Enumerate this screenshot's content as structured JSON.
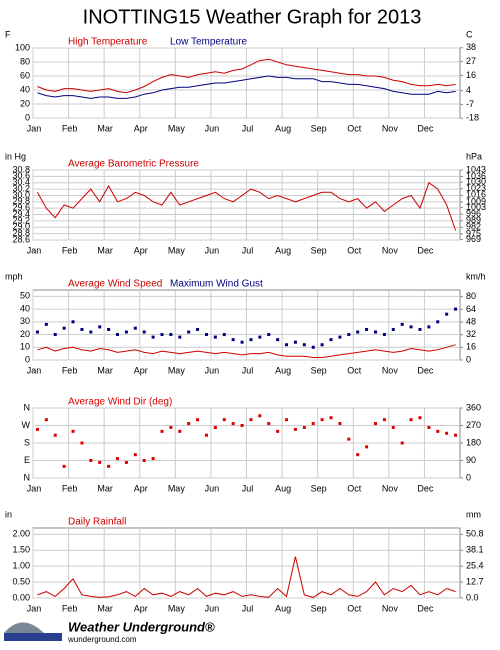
{
  "title": "INOTTING15 Weather Graph for 2013",
  "footer": {
    "brand": "Weather Underground®",
    "url": "wunderground.com"
  },
  "chart_data": [
    {
      "type": "line",
      "y_unit": "F",
      "y2_unit": "C",
      "categories": [
        "Jan",
        null,
        null,
        null,
        "Feb",
        null,
        null,
        null,
        "Mar",
        null,
        null,
        null,
        "Apr",
        null,
        null,
        null,
        "May",
        null,
        null,
        null,
        "Jun",
        null,
        null,
        null,
        "Jul",
        null,
        null,
        null,
        "Aug",
        null,
        null,
        null,
        "Sep",
        null,
        null,
        null,
        "Oct",
        null,
        null,
        null,
        "Nov",
        null,
        null,
        null,
        "Dec",
        null,
        null,
        null
      ],
      "ylim": [
        0,
        100
      ],
      "yticks": [
        0,
        20,
        40,
        60,
        80,
        100
      ],
      "y2lim": [
        -17.8,
        37.8
      ],
      "y2ticks": [
        -18,
        -7,
        4,
        16,
        27,
        38
      ],
      "series": [
        {
          "name": "High Temperature",
          "color": "#cc0000",
          "mark": "line",
          "values": [
            45,
            40,
            38,
            42,
            42,
            40,
            38,
            40,
            42,
            38,
            36,
            40,
            45,
            52,
            58,
            62,
            60,
            58,
            62,
            64,
            66,
            64,
            68,
            70,
            76,
            82,
            84,
            80,
            76,
            74,
            72,
            70,
            68,
            66,
            64,
            62,
            62,
            60,
            60,
            58,
            54,
            52,
            48,
            46,
            46,
            48,
            46,
            48
          ]
        },
        {
          "name": "Low Temperature",
          "color": "#000080",
          "mark": "line",
          "values": [
            36,
            32,
            30,
            32,
            32,
            30,
            28,
            30,
            30,
            28,
            28,
            30,
            34,
            36,
            40,
            42,
            44,
            44,
            46,
            48,
            50,
            50,
            52,
            54,
            56,
            58,
            60,
            58,
            58,
            56,
            56,
            56,
            52,
            52,
            50,
            48,
            48,
            46,
            44,
            42,
            38,
            36,
            34,
            34,
            34,
            38,
            36,
            38
          ]
        }
      ]
    },
    {
      "type": "line",
      "y_unit": "in Hg",
      "y2_unit": "hPa",
      "categories": [
        "Jan",
        null,
        null,
        null,
        "Feb",
        null,
        null,
        null,
        "Mar",
        null,
        null,
        null,
        "Apr",
        null,
        null,
        null,
        "May",
        null,
        null,
        null,
        "Jun",
        null,
        null,
        null,
        "Jul",
        null,
        null,
        null,
        "Aug",
        null,
        null,
        null,
        "Sep",
        null,
        null,
        null,
        "Oct",
        null,
        null,
        null,
        "Nov",
        null,
        null,
        null,
        "Dec",
        null,
        null,
        null
      ],
      "ylim": [
        28.6,
        30.8
      ],
      "yticks": [
        28.6,
        28.8,
        {
          "value": 29,
          "label": "29.0"
        },
        29.2,
        29.4,
        29.6,
        29.8,
        {
          "value": 30,
          "label": "30.0"
        },
        30.2,
        30.4,
        30.6,
        30.8
      ],
      "y2lim": [
        968.5,
        1043
      ],
      "y2ticks": [
        969,
        975,
        982,
        989,
        996,
        1003,
        1009,
        1016,
        1023,
        1030,
        1036,
        1043
      ],
      "series": [
        {
          "name": "Average Barometric Pressure",
          "color": "#cc0000",
          "mark": "line",
          "values": [
            30.1,
            29.6,
            29.3,
            29.7,
            29.6,
            29.9,
            30.2,
            29.8,
            30.3,
            29.8,
            29.9,
            30.1,
            30.0,
            29.8,
            29.7,
            30.1,
            29.7,
            29.8,
            29.9,
            30.0,
            30.1,
            29.9,
            29.8,
            30.0,
            30.2,
            30.1,
            29.9,
            30.0,
            29.9,
            29.8,
            29.9,
            30.0,
            30.1,
            30.1,
            29.9,
            29.8,
            29.9,
            29.6,
            29.8,
            29.5,
            29.7,
            29.9,
            30.0,
            29.6,
            30.4,
            30.2,
            29.7,
            28.9
          ]
        }
      ]
    },
    {
      "type": "line",
      "y_unit": "mph",
      "y2_unit": "km/h",
      "categories": [
        "Jan",
        null,
        null,
        null,
        "Feb",
        null,
        null,
        null,
        "Mar",
        null,
        null,
        null,
        "Apr",
        null,
        null,
        null,
        "May",
        null,
        null,
        null,
        "Jun",
        null,
        null,
        null,
        "Jul",
        null,
        null,
        null,
        "Aug",
        null,
        null,
        null,
        "Sep",
        null,
        null,
        null,
        "Oct",
        null,
        null,
        null,
        "Nov",
        null,
        null,
        null,
        "Dec",
        null,
        null,
        null
      ],
      "ylim": [
        0,
        55
      ],
      "yticks": [
        0,
        10,
        20,
        30,
        40,
        50
      ],
      "y2lim": [
        0,
        88.5
      ],
      "y2ticks": [
        0,
        16,
        32,
        48,
        64,
        80
      ],
      "series": [
        {
          "name": "Average Wind Speed",
          "color": "#cc0000",
          "mark": "line",
          "values": [
            8,
            10,
            7,
            9,
            10,
            8,
            7,
            9,
            8,
            6,
            7,
            8,
            6,
            5,
            7,
            6,
            5,
            6,
            7,
            6,
            5,
            6,
            5,
            4,
            5,
            5,
            6,
            4,
            3,
            3,
            3,
            2,
            2,
            3,
            4,
            5,
            6,
            7,
            8,
            7,
            6,
            7,
            9,
            8,
            7,
            8,
            10,
            12
          ]
        },
        {
          "name": "Maximum Wind Gust",
          "color": "#000080",
          "mark": "dot",
          "values": [
            22,
            28,
            20,
            25,
            30,
            24,
            22,
            26,
            24,
            20,
            22,
            25,
            22,
            18,
            20,
            20,
            18,
            22,
            24,
            20,
            18,
            20,
            16,
            14,
            16,
            18,
            20,
            16,
            12,
            14,
            12,
            10,
            12,
            16,
            18,
            20,
            22,
            24,
            22,
            20,
            24,
            28,
            26,
            24,
            26,
            30,
            36,
            40
          ]
        }
      ]
    },
    {
      "type": "scatter",
      "y_unit": "",
      "y2_unit": "",
      "categories": [
        "Jan",
        null,
        null,
        null,
        "Feb",
        null,
        null,
        null,
        "Mar",
        null,
        null,
        null,
        "Apr",
        null,
        null,
        null,
        "May",
        null,
        null,
        null,
        "Jun",
        null,
        null,
        null,
        "Jul",
        null,
        null,
        null,
        "Aug",
        null,
        null,
        null,
        "Sep",
        null,
        null,
        null,
        "Oct",
        null,
        null,
        null,
        "Nov",
        null,
        null,
        null,
        "Dec",
        null,
        null,
        null
      ],
      "ylim": [
        0,
        360
      ],
      "yticks": [
        {
          "value": 0,
          "label": "N"
        },
        {
          "value": 90,
          "label": "E"
        },
        {
          "value": 180,
          "label": "S"
        },
        {
          "value": 270,
          "label": "W"
        },
        {
          "value": 360,
          "label": "N"
        }
      ],
      "y2lim": [
        0,
        360
      ],
      "y2ticks": [
        0,
        90,
        180,
        270,
        360
      ],
      "series": [
        {
          "name": "Average Wind Dir (deg)",
          "color": "#dd0000",
          "mark": "dot",
          "values": [
            250,
            300,
            220,
            60,
            240,
            180,
            90,
            80,
            60,
            100,
            80,
            120,
            90,
            100,
            240,
            260,
            240,
            280,
            300,
            220,
            260,
            300,
            280,
            270,
            300,
            320,
            280,
            240,
            300,
            250,
            260,
            280,
            300,
            310,
            280,
            200,
            120,
            160,
            280,
            300,
            260,
            180,
            300,
            310,
            260,
            240,
            230,
            220
          ]
        }
      ]
    },
    {
      "type": "line",
      "y_unit": "in",
      "y2_unit": "mm",
      "categories": [
        "Jan",
        null,
        null,
        null,
        "Feb",
        null,
        null,
        null,
        "Mar",
        null,
        null,
        null,
        "Apr",
        null,
        null,
        null,
        "May",
        null,
        null,
        null,
        "Jun",
        null,
        null,
        null,
        "Jul",
        null,
        null,
        null,
        "Aug",
        null,
        null,
        null,
        "Sep",
        null,
        null,
        null,
        "Oct",
        null,
        null,
        null,
        "Nov",
        null,
        null,
        null,
        "Dec",
        null,
        null,
        null
      ],
      "ylim": [
        0,
        2.2
      ],
      "yticks": [
        {
          "value": 0,
          "label": "0.00"
        },
        {
          "value": 0.5,
          "label": "0.50"
        },
        {
          "value": 1,
          "label": "1.00"
        },
        {
          "value": 1.5,
          "label": "1.50"
        },
        {
          "value": 2,
          "label": "2.00"
        }
      ],
      "y2lim": [
        0,
        55.88
      ],
      "y2ticks": [
        {
          "value": 0,
          "label": "0.0"
        },
        12.7,
        25.4,
        38.1,
        50.8
      ],
      "series": [
        {
          "name": "Daily Rainfall",
          "color": "#cc0000",
          "mark": "line",
          "values": [
            0.1,
            0.2,
            0.05,
            0.3,
            0.6,
            0.1,
            0.05,
            0.02,
            0.04,
            0.1,
            0.2,
            0.05,
            0.3,
            0.1,
            0.15,
            0.05,
            0.2,
            0.1,
            0.3,
            0.05,
            0.15,
            0.1,
            0.2,
            0.05,
            0.1,
            0.05,
            0.02,
            0.3,
            0.05,
            1.3,
            0.1,
            0.02,
            0.2,
            0.1,
            0.3,
            0.1,
            0.05,
            0.2,
            0.5,
            0.1,
            0.3,
            0.2,
            0.4,
            0.1,
            0.2,
            0.1,
            0.3,
            0.2
          ]
        }
      ]
    }
  ]
}
